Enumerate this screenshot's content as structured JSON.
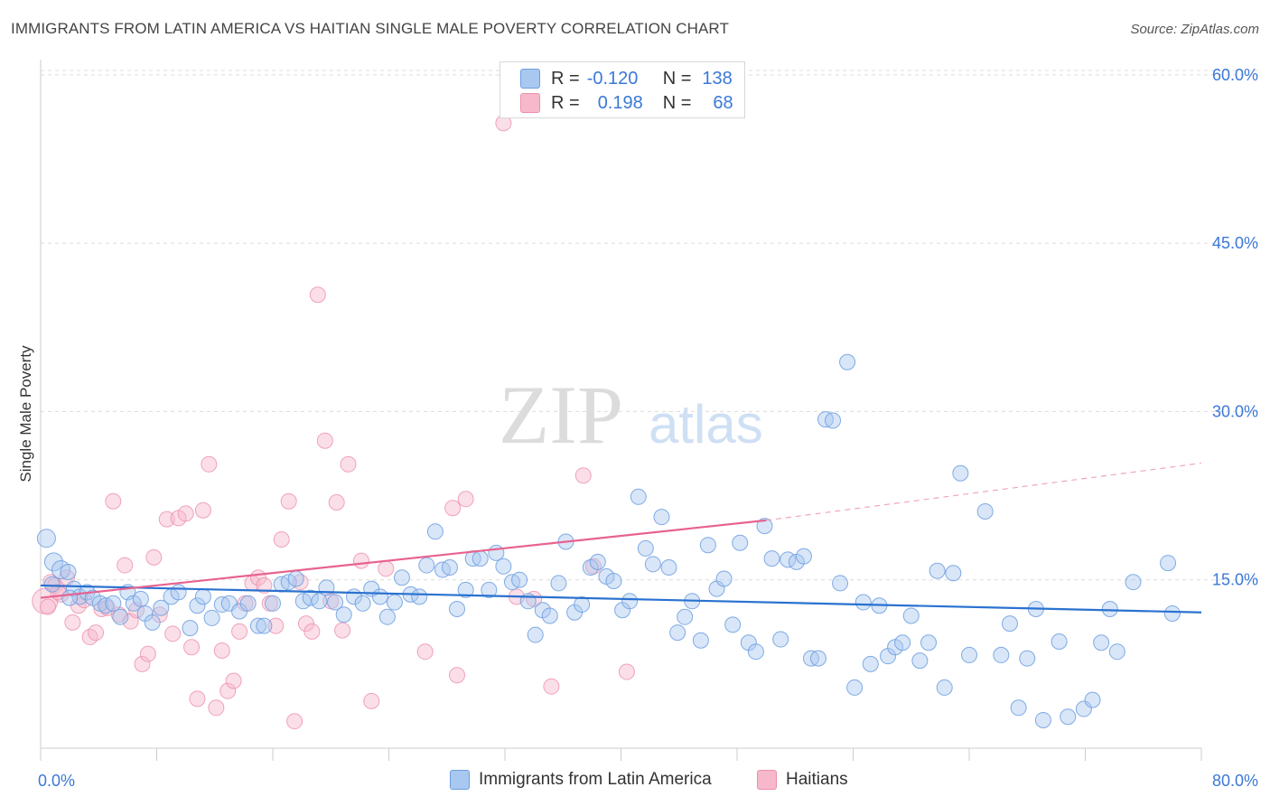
{
  "header": {
    "title": "IMMIGRANTS FROM LATIN AMERICA VS HAITIAN SINGLE MALE POVERTY CORRELATION CHART",
    "source": "Source: ZipAtlas.com"
  },
  "watermark": {
    "zip": "ZIP",
    "atlas": "atlas"
  },
  "legend": {
    "rows": [
      {
        "r_label": "R =",
        "r_value": "-0.120",
        "n_label": "N =",
        "n_value": "138"
      },
      {
        "r_label": "R =",
        "r_value": "0.198",
        "n_label": "N =",
        "n_value": "68"
      }
    ]
  },
  "colors": {
    "blue_fill": "#a8c8f0",
    "blue_stroke": "#6c9ee0",
    "blue_line": "#2a72d0",
    "pink_fill": "#f7b8cb",
    "pink_stroke": "#ec8fab",
    "pink_line": "#e8628f",
    "tick_text": "#3b78d8",
    "grid": "#dcdcdc"
  },
  "chart_data": {
    "type": "scatter",
    "title": "IMMIGRANTS FROM LATIN AMERICA VS HAITIAN SINGLE MALE POVERTY CORRELATION CHART",
    "xlabel": "",
    "ylabel": "Single Male Poverty",
    "xlim": [
      0,
      80
    ],
    "ylim": [
      0,
      62
    ],
    "x_tick_labels": [
      "0.0%",
      "80.0%"
    ],
    "y_ticks": [
      15,
      30,
      45,
      60
    ],
    "y_tick_labels": [
      "15.0%",
      "30.0%",
      "45.0%",
      "60.0%"
    ],
    "grid": true,
    "legend_position": "top-center",
    "series": [
      {
        "name": "Immigrants from Latin America",
        "r": -0.12,
        "n": 138,
        "trend": {
          "x": [
            0,
            80
          ],
          "y": [
            14.5,
            12.1
          ]
        },
        "points": [
          [
            0.4,
            18.7
          ],
          [
            0.9,
            16.6
          ],
          [
            1.4,
            15.9
          ],
          [
            1.9,
            15.7
          ],
          [
            2.3,
            14.2
          ],
          [
            2.7,
            13.5
          ],
          [
            3.2,
            13.9
          ],
          [
            3.6,
            13.4
          ],
          [
            4.1,
            12.9
          ],
          [
            4.5,
            12.7
          ],
          [
            5.0,
            12.9
          ],
          [
            5.5,
            11.7
          ],
          [
            6.0,
            13.9
          ],
          [
            6.4,
            12.9
          ],
          [
            6.9,
            13.3
          ],
          [
            7.2,
            12.0
          ],
          [
            7.7,
            11.2
          ],
          [
            8.3,
            12.5
          ],
          [
            9.0,
            13.5
          ],
          [
            9.5,
            13.9
          ],
          [
            10.3,
            10.7
          ],
          [
            10.8,
            12.7
          ],
          [
            11.2,
            13.5
          ],
          [
            11.8,
            11.6
          ],
          [
            12.5,
            12.8
          ],
          [
            13.0,
            12.9
          ],
          [
            13.7,
            12.2
          ],
          [
            14.3,
            12.9
          ],
          [
            15.0,
            10.9
          ],
          [
            15.4,
            10.9
          ],
          [
            16.0,
            12.9
          ],
          [
            16.6,
            14.6
          ],
          [
            17.1,
            14.8
          ],
          [
            17.6,
            15.1
          ],
          [
            18.1,
            13.1
          ],
          [
            18.6,
            13.4
          ],
          [
            19.2,
            13.1
          ],
          [
            19.7,
            14.3
          ],
          [
            20.3,
            13.0
          ],
          [
            20.9,
            11.9
          ],
          [
            21.6,
            13.5
          ],
          [
            22.2,
            12.9
          ],
          [
            22.8,
            14.2
          ],
          [
            23.4,
            13.5
          ],
          [
            23.9,
            11.7
          ],
          [
            24.4,
            13.0
          ],
          [
            24.9,
            15.2
          ],
          [
            25.5,
            13.7
          ],
          [
            26.1,
            13.5
          ],
          [
            26.6,
            16.3
          ],
          [
            27.2,
            19.3
          ],
          [
            27.7,
            15.9
          ],
          [
            28.2,
            16.1
          ],
          [
            28.7,
            12.4
          ],
          [
            29.3,
            14.1
          ],
          [
            29.8,
            16.9
          ],
          [
            30.3,
            16.9
          ],
          [
            30.9,
            14.1
          ],
          [
            31.4,
            17.4
          ],
          [
            31.9,
            16.2
          ],
          [
            32.5,
            14.8
          ],
          [
            33.0,
            15.0
          ],
          [
            33.6,
            13.1
          ],
          [
            34.1,
            10.1
          ],
          [
            34.6,
            12.3
          ],
          [
            35.1,
            11.8
          ],
          [
            35.7,
            14.7
          ],
          [
            36.2,
            18.4
          ],
          [
            36.8,
            12.1
          ],
          [
            37.3,
            12.8
          ],
          [
            37.9,
            16.1
          ],
          [
            38.4,
            16.6
          ],
          [
            39.0,
            15.3
          ],
          [
            39.5,
            14.9
          ],
          [
            40.1,
            12.3
          ],
          [
            40.6,
            13.1
          ],
          [
            41.2,
            22.4
          ],
          [
            41.7,
            17.8
          ],
          [
            42.2,
            16.4
          ],
          [
            42.8,
            20.6
          ],
          [
            43.3,
            16.1
          ],
          [
            43.9,
            10.3
          ],
          [
            44.4,
            11.7
          ],
          [
            44.9,
            13.1
          ],
          [
            45.5,
            9.6
          ],
          [
            46.0,
            18.1
          ],
          [
            46.6,
            14.2
          ],
          [
            47.1,
            15.1
          ],
          [
            47.7,
            11.0
          ],
          [
            48.2,
            18.3
          ],
          [
            48.8,
            9.4
          ],
          [
            49.3,
            8.6
          ],
          [
            49.9,
            19.8
          ],
          [
            50.4,
            16.9
          ],
          [
            51.0,
            9.7
          ],
          [
            51.5,
            16.8
          ],
          [
            52.1,
            16.6
          ],
          [
            52.6,
            17.1
          ],
          [
            53.1,
            8.0
          ],
          [
            53.6,
            8.0
          ],
          [
            54.1,
            29.3
          ],
          [
            54.6,
            29.2
          ],
          [
            55.1,
            14.7
          ],
          [
            55.6,
            34.4
          ],
          [
            56.1,
            5.4
          ],
          [
            56.7,
            13.0
          ],
          [
            57.2,
            7.5
          ],
          [
            57.8,
            12.7
          ],
          [
            58.4,
            8.2
          ],
          [
            58.9,
            9.0
          ],
          [
            59.4,
            9.4
          ],
          [
            60.0,
            11.8
          ],
          [
            60.6,
            7.8
          ],
          [
            61.2,
            9.4
          ],
          [
            61.8,
            15.8
          ],
          [
            62.3,
            5.4
          ],
          [
            62.9,
            15.6
          ],
          [
            63.4,
            24.5
          ],
          [
            64.0,
            8.3
          ],
          [
            65.1,
            21.1
          ],
          [
            66.2,
            8.3
          ],
          [
            66.8,
            11.1
          ],
          [
            67.4,
            3.6
          ],
          [
            68.0,
            8.0
          ],
          [
            68.6,
            12.4
          ],
          [
            69.1,
            2.5
          ],
          [
            70.2,
            9.5
          ],
          [
            70.8,
            2.8
          ],
          [
            71.9,
            3.5
          ],
          [
            72.5,
            4.3
          ],
          [
            73.1,
            9.4
          ],
          [
            73.7,
            12.4
          ],
          [
            74.2,
            8.6
          ],
          [
            75.3,
            14.8
          ],
          [
            77.7,
            16.5
          ],
          [
            78.0,
            12.0
          ],
          [
            0.8,
            14.6
          ],
          [
            2.0,
            13.4
          ]
        ]
      },
      {
        "name": "Haitians",
        "r": 0.198,
        "n": 68,
        "trend": {
          "x": [
            0,
            50
          ],
          "y": [
            13.4,
            20.3
          ]
        },
        "trend_dashed": {
          "x": [
            50,
            80
          ],
          "y": [
            20.3,
            25.4
          ]
        },
        "points": [
          [
            0.3,
            13.1
          ],
          [
            0.7,
            14.8
          ],
          [
            1.0,
            14.5
          ],
          [
            1.4,
            13.7
          ],
          [
            1.8,
            15.2
          ],
          [
            2.2,
            11.2
          ],
          [
            2.6,
            12.7
          ],
          [
            3.0,
            13.2
          ],
          [
            3.4,
            9.9
          ],
          [
            3.8,
            10.3
          ],
          [
            4.2,
            12.4
          ],
          [
            4.6,
            12.5
          ],
          [
            5.0,
            22.0
          ],
          [
            5.4,
            11.9
          ],
          [
            5.8,
            16.3
          ],
          [
            6.2,
            11.3
          ],
          [
            6.6,
            12.3
          ],
          [
            7.0,
            7.5
          ],
          [
            7.4,
            8.4
          ],
          [
            7.8,
            17.0
          ],
          [
            8.2,
            11.9
          ],
          [
            8.7,
            20.4
          ],
          [
            9.1,
            10.2
          ],
          [
            9.5,
            20.5
          ],
          [
            10.0,
            20.9
          ],
          [
            10.4,
            9.0
          ],
          [
            10.8,
            4.4
          ],
          [
            11.2,
            21.2
          ],
          [
            11.6,
            25.3
          ],
          [
            12.1,
            3.6
          ],
          [
            12.5,
            8.7
          ],
          [
            12.9,
            5.1
          ],
          [
            13.3,
            6.0
          ],
          [
            13.7,
            10.4
          ],
          [
            14.1,
            12.9
          ],
          [
            14.6,
            14.7
          ],
          [
            15.0,
            15.2
          ],
          [
            15.4,
            14.5
          ],
          [
            15.8,
            12.9
          ],
          [
            16.2,
            10.9
          ],
          [
            16.6,
            18.6
          ],
          [
            17.1,
            22.0
          ],
          [
            17.5,
            2.4
          ],
          [
            17.9,
            14.8
          ],
          [
            18.3,
            11.1
          ],
          [
            18.7,
            10.4
          ],
          [
            19.1,
            40.4
          ],
          [
            19.6,
            27.4
          ],
          [
            20.0,
            13.1
          ],
          [
            20.4,
            21.9
          ],
          [
            20.8,
            10.5
          ],
          [
            21.2,
            25.3
          ],
          [
            22.1,
            16.7
          ],
          [
            22.8,
            4.2
          ],
          [
            23.8,
            16.0
          ],
          [
            26.5,
            8.6
          ],
          [
            28.4,
            21.4
          ],
          [
            28.7,
            6.5
          ],
          [
            29.3,
            22.2
          ],
          [
            31.9,
            55.7
          ],
          [
            32.8,
            13.5
          ],
          [
            34.0,
            13.3
          ],
          [
            35.2,
            5.5
          ],
          [
            37.4,
            24.3
          ],
          [
            38.1,
            16.2
          ],
          [
            40.4,
            6.8
          ],
          [
            0.5,
            12.6
          ],
          [
            1.2,
            13.9
          ]
        ]
      }
    ]
  },
  "bottom_legend": {
    "items": [
      {
        "label": "Immigrants from Latin America"
      },
      {
        "label": "Haitians"
      }
    ]
  }
}
